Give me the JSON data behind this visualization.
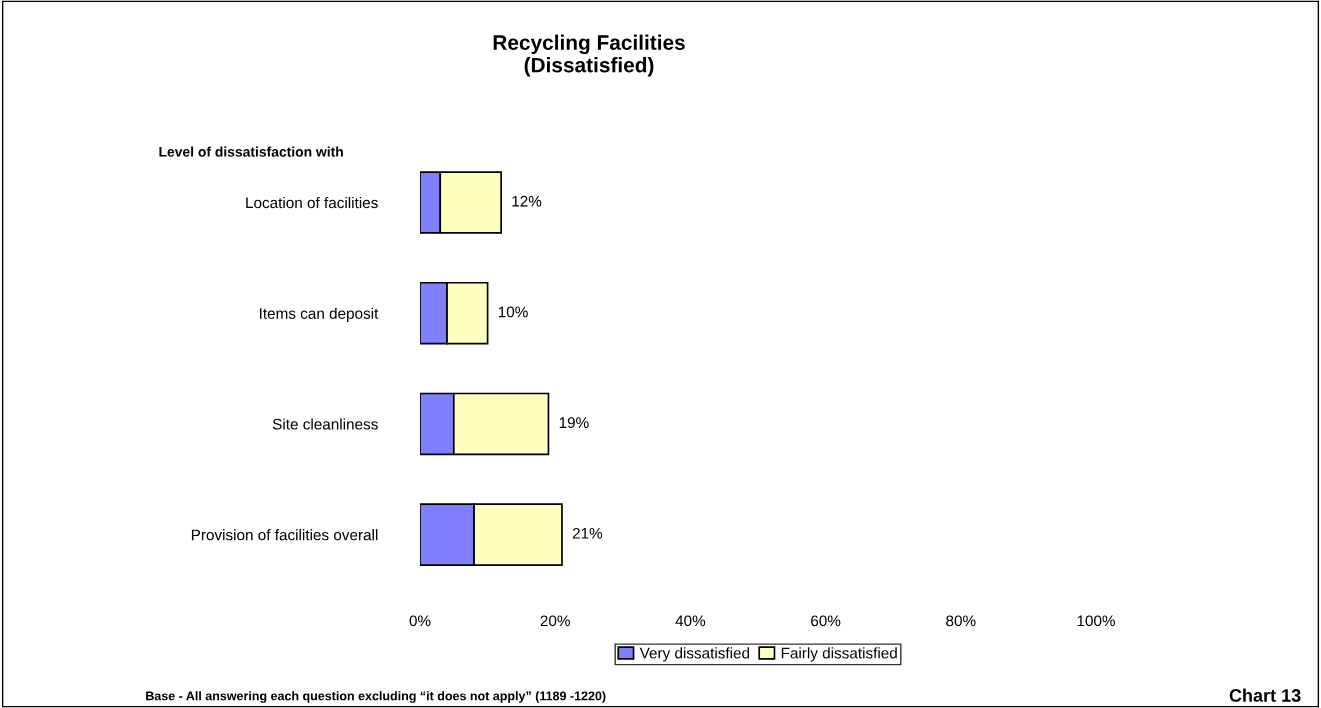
{
  "chart_data": {
    "type": "bar",
    "orientation": "horizontal",
    "stacked": true,
    "title": "Recycling Facilities\n(Dissatisfied)",
    "categories": [
      "Location of facilities",
      "Items can deposit",
      "Site cleanliness",
      "Provision of facilities overall"
    ],
    "series": [
      {
        "name": "Very dissatisfied",
        "color": "#8080ff",
        "values": [
          3,
          4,
          5,
          8
        ]
      },
      {
        "name": "Fairly dissatisfied",
        "color": "#ffffc0",
        "values": [
          9,
          6,
          14,
          13
        ]
      }
    ],
    "totals": [
      "12%",
      "10%",
      "19%",
      "21%"
    ],
    "xlim": [
      0,
      100
    ],
    "xticks": [
      {
        "value": 0,
        "label": "0%"
      },
      {
        "value": 20,
        "label": "20%"
      },
      {
        "value": 40,
        "label": "40%"
      },
      {
        "value": 60,
        "label": "60%"
      },
      {
        "value": 80,
        "label": "80%"
      },
      {
        "value": 100,
        "label": "100%"
      }
    ],
    "grid": false,
    "legend": "bottom",
    "annotations": [
      "Level of dissatisfaction with",
      "Base - All answering each question excluding “it does not apply” (1189 -1220)",
      "Chart 13"
    ]
  }
}
